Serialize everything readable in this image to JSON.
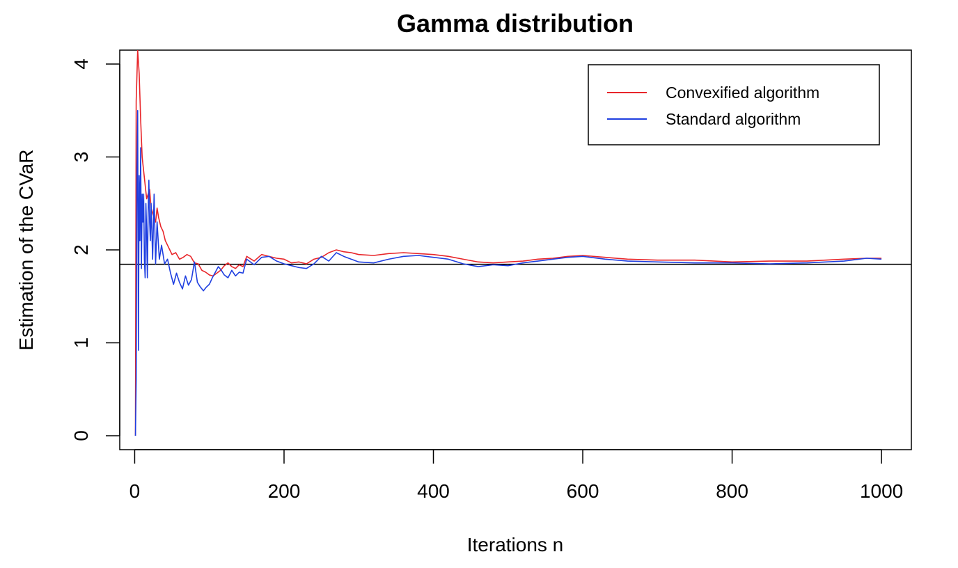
{
  "chart_data": {
    "type": "line",
    "title": "Gamma distribution",
    "xlabel": "Iterations n",
    "ylabel": "Estimation of the CVaR",
    "xlim": [
      -20,
      1040
    ],
    "ylim": [
      -0.15,
      4.15
    ],
    "x_ticks": [
      0,
      200,
      400,
      600,
      800,
      1000
    ],
    "y_ticks": [
      0,
      1,
      2,
      3,
      4
    ],
    "grid": false,
    "legend_position": "top-right",
    "reference_line": {
      "y": 1.845,
      "color": "#000000"
    },
    "series": [
      {
        "name": "Convexified algorithm",
        "color": "#e8262a",
        "x": [
          1,
          2,
          4,
          6,
          8,
          10,
          12,
          14,
          16,
          18,
          20,
          22,
          24,
          26,
          28,
          30,
          32,
          35,
          38,
          41,
          44,
          47,
          50,
          55,
          60,
          65,
          70,
          75,
          80,
          85,
          90,
          95,
          100,
          105,
          110,
          115,
          120,
          125,
          130,
          135,
          140,
          145,
          150,
          160,
          170,
          180,
          190,
          200,
          210,
          220,
          230,
          240,
          250,
          260,
          270,
          280,
          290,
          300,
          320,
          340,
          360,
          380,
          400,
          420,
          440,
          460,
          480,
          500,
          520,
          540,
          560,
          580,
          600,
          630,
          660,
          700,
          750,
          800,
          850,
          900,
          950,
          980,
          1000
        ],
        "y": [
          0.0,
          3.6,
          4.15,
          3.9,
          3.4,
          3.0,
          2.85,
          2.7,
          2.55,
          2.6,
          2.65,
          2.45,
          2.4,
          2.35,
          2.3,
          2.45,
          2.35,
          2.25,
          2.2,
          2.1,
          2.05,
          2.0,
          1.95,
          1.97,
          1.9,
          1.92,
          1.95,
          1.93,
          1.86,
          1.85,
          1.78,
          1.76,
          1.73,
          1.72,
          1.75,
          1.78,
          1.83,
          1.86,
          1.82,
          1.8,
          1.84,
          1.82,
          1.93,
          1.88,
          1.95,
          1.93,
          1.91,
          1.9,
          1.86,
          1.87,
          1.85,
          1.9,
          1.92,
          1.97,
          2.0,
          1.98,
          1.97,
          1.95,
          1.94,
          1.96,
          1.97,
          1.96,
          1.95,
          1.93,
          1.9,
          1.87,
          1.86,
          1.87,
          1.88,
          1.9,
          1.91,
          1.93,
          1.94,
          1.92,
          1.9,
          1.89,
          1.89,
          1.87,
          1.88,
          1.88,
          1.9,
          1.91,
          1.91
        ]
      },
      {
        "name": "Standard algorithm",
        "color": "#1f3fe0",
        "x": [
          1,
          2,
          3,
          4,
          5,
          6,
          7,
          8,
          9,
          10,
          11,
          12,
          13,
          14,
          15,
          16,
          17,
          18,
          19,
          20,
          21,
          22,
          24,
          26,
          28,
          30,
          33,
          36,
          40,
          44,
          48,
          52,
          56,
          60,
          64,
          68,
          72,
          76,
          80,
          84,
          88,
          92,
          96,
          100,
          104,
          108,
          112,
          116,
          120,
          125,
          130,
          135,
          140,
          145,
          150,
          160,
          170,
          180,
          190,
          200,
          210,
          220,
          230,
          240,
          250,
          260,
          270,
          280,
          290,
          300,
          320,
          340,
          360,
          380,
          400,
          420,
          440,
          460,
          480,
          500,
          520,
          540,
          560,
          580,
          600,
          630,
          660,
          700,
          750,
          800,
          850,
          900,
          950,
          980,
          1000
        ],
        "y": [
          0.0,
          0.6,
          2.8,
          3.5,
          0.92,
          2.8,
          2.1,
          3.1,
          1.8,
          2.6,
          2.3,
          2.6,
          1.9,
          1.7,
          2.5,
          2.2,
          1.7,
          2.4,
          2.75,
          2.3,
          2.1,
          2.5,
          1.9,
          2.6,
          1.85,
          2.3,
          1.9,
          2.05,
          1.85,
          1.9,
          1.75,
          1.63,
          1.75,
          1.65,
          1.58,
          1.72,
          1.62,
          1.68,
          1.87,
          1.65,
          1.6,
          1.56,
          1.6,
          1.63,
          1.7,
          1.76,
          1.82,
          1.78,
          1.73,
          1.7,
          1.78,
          1.72,
          1.76,
          1.75,
          1.9,
          1.84,
          1.92,
          1.93,
          1.88,
          1.85,
          1.83,
          1.81,
          1.8,
          1.85,
          1.93,
          1.88,
          1.97,
          1.93,
          1.9,
          1.87,
          1.86,
          1.9,
          1.93,
          1.94,
          1.92,
          1.9,
          1.85,
          1.82,
          1.84,
          1.83,
          1.86,
          1.88,
          1.9,
          1.92,
          1.93,
          1.9,
          1.88,
          1.87,
          1.86,
          1.86,
          1.85,
          1.86,
          1.88,
          1.91,
          1.9
        ]
      }
    ]
  }
}
